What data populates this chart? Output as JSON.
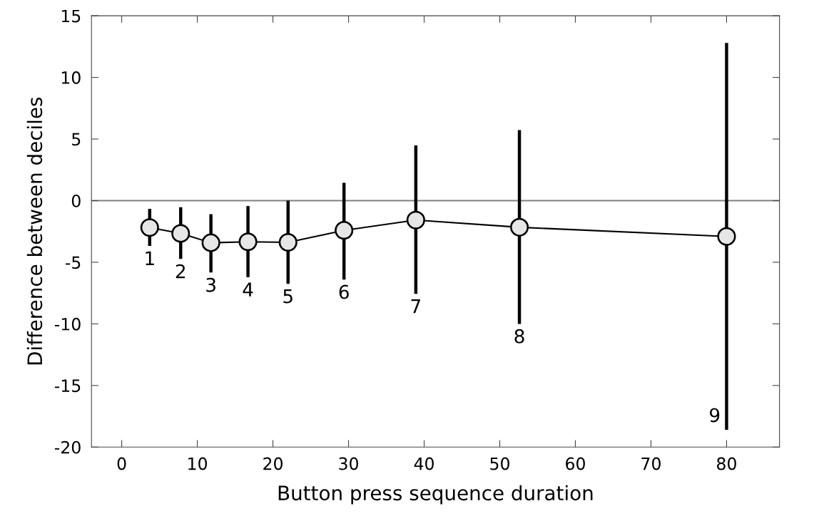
{
  "chart_data": {
    "type": "line",
    "xlabel": "Button press sequence duration",
    "ylabel": "Difference between deciles",
    "xlim": [
      -4,
      87
    ],
    "xticks": [
      0,
      10,
      20,
      30,
      40,
      50,
      60,
      70,
      80
    ],
    "ylim": [
      -20,
      15
    ],
    "yticks": [
      -20,
      -15,
      -10,
      -5,
      0,
      5,
      10,
      15
    ],
    "x": [
      3.7,
      7.8,
      11.8,
      16.7,
      22.0,
      29.4,
      38.9,
      52.6,
      80.0
    ],
    "series": [
      {
        "color": "#000000",
        "values": [
          -2.18,
          -2.66,
          -3.42,
          -3.34,
          -3.38,
          -2.41,
          -1.58,
          -2.16,
          -2.91
        ],
        "errors": [
          [
            -3.67,
            -0.67
          ],
          [
            -4.73,
            -0.54
          ],
          [
            -5.83,
            -1.1
          ],
          [
            -6.21,
            -0.44
          ],
          [
            -6.75,
            0.0
          ],
          [
            -6.4,
            1.45
          ],
          [
            -7.56,
            4.48
          ],
          [
            -10.0,
            5.73
          ],
          [
            -18.6,
            12.8
          ]
        ]
      }
    ],
    "marker": "circle",
    "line_style": "solid",
    "grid": false,
    "ref_lines": [
      {
        "axis": "y",
        "value": 0,
        "color": "#808080"
      }
    ],
    "annotations": [
      {
        "text": "1",
        "x": 3.7,
        "y": -3.67
      },
      {
        "text": "2",
        "x": 7.8,
        "y": -4.73
      },
      {
        "text": "3",
        "x": 11.8,
        "y": -5.83
      },
      {
        "text": "4",
        "x": 16.7,
        "y": -6.21
      },
      {
        "text": "5",
        "x": 22.0,
        "y": -6.75
      },
      {
        "text": "6",
        "x": 29.4,
        "y": -6.4
      },
      {
        "text": "7",
        "x": 38.9,
        "y": -7.56
      },
      {
        "text": "8",
        "x": 52.6,
        "y": -10.0
      },
      {
        "text": "9",
        "x": 80.0,
        "y": -18.6
      }
    ]
  }
}
